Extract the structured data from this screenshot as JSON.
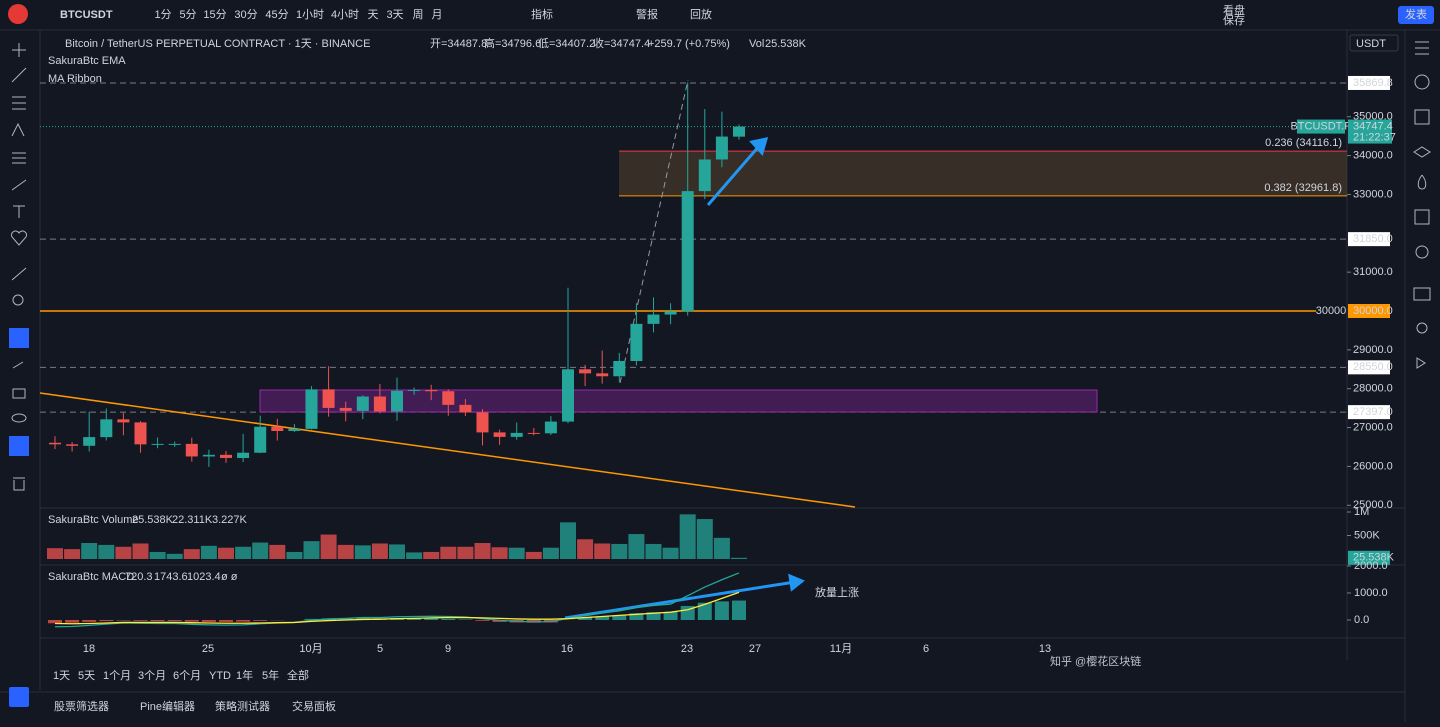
{
  "toolbar": {
    "symbol": "BTCUSDT",
    "intervals": [
      "1分",
      "5分",
      "15分",
      "30分",
      "45分",
      "1小时",
      "4小时",
      "天",
      "3天",
      "周",
      "月"
    ],
    "indicators": "指标",
    "alert": "警报",
    "replay": "回放",
    "layout": "看盘",
    "save": "保存",
    "publish": "发表"
  },
  "legend": {
    "title": "Bitcoin / TetherUS PERPETUAL CONTRACT · 1天 · BINANCE",
    "ohlc": [
      "开=34487.8",
      "高=34796.6",
      "低=34407.2",
      "收=34747.4",
      "+259.7 (+0.75%)"
    ],
    "vol": "Vol",
    "vol_value": "25.538K",
    "indicators": [
      "SakuraBtc EMA",
      "MA Ribbon"
    ]
  },
  "price_axis": {
    "currency": "USDT",
    "ticks": [
      {
        "value": 35000,
        "label": "35000.0"
      },
      {
        "value": 34000,
        "label": "34000.0"
      },
      {
        "value": 33000,
        "label": "33000.0"
      },
      {
        "value": 31000,
        "label": "31000.0"
      },
      {
        "value": 29000,
        "label": "29000.0"
      },
      {
        "value": 28000,
        "label": "28000.0"
      },
      {
        "value": 27000,
        "label": "27000.0"
      },
      {
        "value": 26000,
        "label": "26000.0"
      },
      {
        "value": 25000,
        "label": "25000.0"
      }
    ],
    "levels": [
      {
        "value": 35869.8,
        "label": "35869.8"
      },
      {
        "value": 31850,
        "label": "31850.0"
      },
      {
        "value": 28550,
        "label": "28550.0"
      },
      {
        "value": 27397,
        "label": "27397.0"
      }
    ],
    "level_30000": {
      "value": 30000,
      "label": "30000.0"
    },
    "last": {
      "symbol": "BTCUSDT.P",
      "price": {
        "value": 34747.4,
        "label": "34747.4"
      },
      "countdown": "21:22:37"
    }
  },
  "drawings": {
    "fib": [
      {
        "value": 34116.1,
        "label": "0.236 (34116.1)"
      },
      {
        "value": 32961.8,
        "label": "0.382 (32961.8)"
      }
    ],
    "horizontal": {
      "value": 30000,
      "label": "30000"
    }
  },
  "candles": [
    [
      26608,
      26777,
      26445,
      26568
    ],
    [
      26568,
      26627,
      26382,
      26530
    ],
    [
      26530,
      27409,
      26384,
      26754
    ],
    [
      26754,
      27490,
      26668,
      27211
    ],
    [
      27211,
      27379,
      26800,
      27133
    ],
    [
      27133,
      27165,
      26351,
      26567
    ],
    [
      26567,
      26743,
      26468,
      26579
    ],
    [
      26579,
      26640,
      26500,
      26579
    ],
    [
      26579,
      26738,
      26122,
      26256
    ],
    [
      26256,
      26428,
      25988,
      26298
    ],
    [
      26298,
      26397,
      26090,
      26217
    ],
    [
      26217,
      26837,
      26112,
      26352
    ],
    [
      26352,
      27308,
      26342,
      27021
    ],
    [
      27021,
      27224,
      26665,
      26911
    ],
    [
      26911,
      27089,
      26888,
      26967
    ],
    [
      26967,
      28065,
      26954,
      27983
    ],
    [
      27983,
      28580,
      27280,
      27505
    ],
    [
      27505,
      27667,
      27160,
      27429
    ],
    [
      27429,
      27830,
      27215,
      27799
    ],
    [
      27799,
      28120,
      27365,
      27415
    ],
    [
      27415,
      28285,
      27175,
      27946
    ],
    [
      27946,
      28029,
      27842,
      27968
    ],
    [
      27968,
      28100,
      27705,
      27935
    ],
    [
      27935,
      27985,
      27303,
      27584
    ],
    [
      27584,
      27735,
      27298,
      27391
    ],
    [
      27391,
      27479,
      26538,
      26875
    ],
    [
      26875,
      26947,
      26555,
      26760
    ],
    [
      26760,
      27130,
      26686,
      26862
    ],
    [
      26862,
      26989,
      26800,
      26852
    ],
    [
      26852,
      27293,
      26810,
      27154
    ],
    [
      27154,
      30600,
      27112,
      28500
    ],
    [
      28500,
      28613,
      28069,
      28395
    ],
    [
      28395,
      28982,
      28130,
      28320
    ],
    [
      28320,
      28920,
      28170,
      28713
    ],
    [
      28713,
      30200,
      28600,
      29669
    ],
    [
      29669,
      30350,
      29450,
      29909
    ],
    [
      29909,
      30200,
      29660,
      29992
    ],
    [
      29992,
      35880,
      29880,
      33086
    ],
    [
      33086,
      35198,
      32880,
      33900
    ],
    [
      33900,
      35132,
      33700,
      34490
    ],
    [
      34487.8,
      34796.6,
      34407.2,
      34747.4
    ]
  ],
  "volume": {
    "title": "SakuraBtc Volume",
    "legend": [
      "25.538K",
      "22.311K",
      "3.227K"
    ],
    "values": [
      230000,
      210000,
      340000,
      300000,
      260000,
      330000,
      150000,
      110000,
      210000,
      280000,
      240000,
      260000,
      350000,
      300000,
      150000,
      380000,
      520000,
      300000,
      290000,
      330000,
      310000,
      140000,
      150000,
      260000,
      260000,
      340000,
      250000,
      240000,
      150000,
      240000,
      780000,
      420000,
      330000,
      320000,
      530000,
      320000,
      240000,
      950000,
      850000,
      450000,
      25538
    ],
    "ticks": [
      {
        "value": 1000000,
        "label": "1M"
      },
      {
        "value": 500000,
        "label": "500K"
      }
    ],
    "last": {
      "value": 25538,
      "label": "25.538K"
    }
  },
  "macd": {
    "title": "SakuraBtc MACD",
    "legend": [
      "720.3",
      "1743.6",
      "1023.4"
    ],
    "extra": "ø ø",
    "histogram": [
      -120,
      -100,
      -70,
      -40,
      -20,
      -30,
      -40,
      -40,
      -60,
      -70,
      -70,
      -60,
      -30,
      -10,
      0,
      40,
      60,
      60,
      70,
      60,
      70,
      70,
      60,
      40,
      20,
      -30,
      -70,
      -90,
      -100,
      -90,
      10,
      90,
      130,
      170,
      250,
      290,
      300,
      520,
      640,
      690,
      720.3
    ],
    "macd": [
      -250,
      -240,
      -200,
      -150,
      -110,
      -120,
      -130,
      -130,
      -160,
      -180,
      -190,
      -180,
      -140,
      -110,
      -90,
      -10,
      40,
      60,
      90,
      90,
      120,
      130,
      140,
      130,
      110,
      50,
      -10,
      -50,
      -70,
      -60,
      60,
      180,
      260,
      340,
      460,
      540,
      590,
      900,
      1220,
      1490,
      1743.6
    ],
    "signal": [
      -130,
      -140,
      -130,
      -110,
      -90,
      -90,
      -90,
      -90,
      -100,
      -110,
      -120,
      -120,
      -110,
      -100,
      -90,
      -50,
      -20,
      0,
      20,
      30,
      50,
      60,
      80,
      90,
      90,
      80,
      60,
      40,
      30,
      30,
      50,
      90,
      130,
      170,
      210,
      250,
      290,
      380,
      580,
      800,
      1023.4
    ],
    "ticks": [
      {
        "value": 2000,
        "label": "2000.0"
      },
      {
        "value": 1000,
        "label": "1000.0"
      },
      {
        "value": 0,
        "label": "0.0"
      }
    ]
  },
  "annotation": "放量上涨",
  "time_axis": [
    "18",
    "25",
    "10月",
    "5",
    "9",
    "16",
    "23",
    "27",
    "11月",
    "6",
    "13"
  ],
  "ranges": [
    "1天",
    "5天",
    "1个月",
    "3个月",
    "6个月",
    "YTD",
    "1年",
    "5年",
    "全部"
  ],
  "bottom_tabs": [
    "股票筛选器",
    "Pine编辑器",
    "策略测试器",
    "交易面板"
  ],
  "watermark": "知乎 @樱花区块链"
}
